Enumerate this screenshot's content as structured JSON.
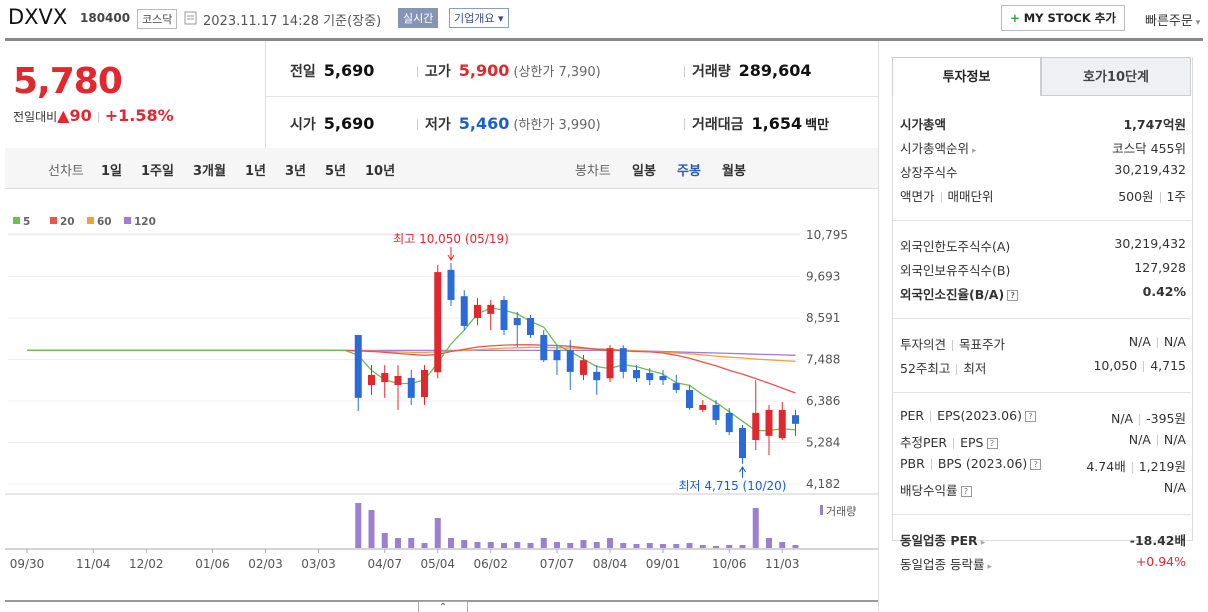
{
  "header": {
    "name": "DXVX",
    "code": "180400",
    "market": "코스닥",
    "datetime": "2023.11.17 14:28",
    "basis": "기준(장중)",
    "realtime": "실시간",
    "company": "기업개요",
    "mystock": "MY STOCK 추가",
    "quick_order": "빠른주문"
  },
  "quote": {
    "price": "5,780",
    "change_label": "전일대비",
    "change": "▲90",
    "change_rate": "+1.58%",
    "stats": [
      {
        "label": "전일",
        "value": "5,690"
      },
      {
        "label": "고가",
        "value": "5,900",
        "note": "(상한가 7,390)"
      },
      {
        "label": "거래량",
        "value": "289,604"
      },
      {
        "label": "시가",
        "value": "5,690"
      },
      {
        "label": "저가",
        "value": "5,460",
        "note": "(하한가 3,990)"
      },
      {
        "label": "거래대금",
        "value": "1,654",
        "unit": "백만"
      }
    ]
  },
  "periods": {
    "line_label": "선차트",
    "line": [
      "1일",
      "1주일",
      "3개월",
      "1년",
      "3년",
      "5년",
      "10년"
    ],
    "candle_label": "봉차트",
    "candle": [
      "일봉",
      "주봉",
      "월봉"
    ]
  },
  "chart_data": {
    "type": "candlestick",
    "categories": [
      "09/30",
      null,
      null,
      null,
      null,
      "11/04",
      null,
      null,
      null,
      "12/02",
      null,
      null,
      null,
      null,
      "01/06",
      null,
      null,
      null,
      "02/03",
      null,
      null,
      null,
      "03/03",
      null,
      null,
      null,
      null,
      "04/07",
      null,
      null,
      null,
      "05/04",
      null,
      null,
      null,
      "06/02",
      null,
      null,
      null,
      null,
      "07/07",
      null,
      null,
      null,
      "08/04",
      null,
      null,
      null,
      "09/01",
      null,
      null,
      null,
      null,
      "10/06",
      null,
      null,
      null,
      "11/03",
      null
    ],
    "open": [
      null,
      null,
      null,
      null,
      null,
      null,
      null,
      null,
      null,
      null,
      null,
      null,
      null,
      null,
      null,
      null,
      null,
      null,
      null,
      null,
      null,
      null,
      null,
      null,
      null,
      8140,
      6810,
      6890,
      6810,
      7000,
      6490,
      7150,
      9870,
      9170,
      8590,
      8700,
      9070,
      8590,
      8590,
      8140,
      7740,
      7740,
      7080,
      7160,
      6990,
      7790,
      7210,
      7130,
      7050,
      6860,
      6680,
      6150,
      6280,
      6070,
      5670,
      5350,
      5460,
      5400,
      6010
    ],
    "high": [
      null,
      null,
      null,
      null,
      null,
      null,
      null,
      null,
      null,
      null,
      null,
      null,
      null,
      null,
      null,
      null,
      null,
      null,
      null,
      null,
      null,
      null,
      null,
      null,
      null,
      8140,
      7340,
      7340,
      7340,
      7210,
      7340,
      10000,
      10050,
      9330,
      9120,
      9070,
      9170,
      8750,
      8670,
      8270,
      7870,
      8010,
      7610,
      7340,
      7870,
      7870,
      7340,
      7260,
      7210,
      7080,
      6810,
      6410,
      6410,
      6200,
      5750,
      6940,
      6280,
      6360,
      6150
    ],
    "low": [
      null,
      null,
      null,
      null,
      null,
      null,
      null,
      null,
      null,
      null,
      null,
      null,
      null,
      null,
      null,
      null,
      null,
      null,
      null,
      null,
      null,
      null,
      null,
      null,
      null,
      6120,
      6550,
      6470,
      6150,
      6280,
      6280,
      6990,
      8910,
      8270,
      8400,
      8270,
      8140,
      7820,
      8060,
      7420,
      7080,
      6680,
      6940,
      6550,
      6890,
      6990,
      6890,
      6810,
      6810,
      6600,
      6150,
      6090,
      5750,
      5480,
      4715,
      5080,
      4950,
      5350,
      5460
    ],
    "close": [
      null,
      null,
      null,
      null,
      null,
      null,
      null,
      null,
      null,
      null,
      null,
      null,
      null,
      null,
      null,
      null,
      null,
      null,
      null,
      null,
      null,
      null,
      null,
      null,
      null,
      6470,
      7080,
      7130,
      7050,
      6470,
      7210,
      9810,
      9070,
      8380,
      8940,
      8940,
      8270,
      8400,
      8140,
      7470,
      7470,
      7160,
      7470,
      6940,
      7790,
      7160,
      6990,
      6940,
      6940,
      6680,
      6200,
      6280,
      5880,
      5560,
      4870,
      6070,
      6150,
      6150,
      5780
    ],
    "up_color": "#e0282e",
    "down_color": "#2a6bd8",
    "series": [
      {
        "name": "5",
        "color": "#6bbf4e",
        "values": [
          7730,
          7730,
          7730,
          7730,
          7730,
          7730,
          7730,
          7730,
          7730,
          7730,
          7730,
          7730,
          7730,
          7730,
          7730,
          7730,
          7730,
          7730,
          7730,
          7730,
          7730,
          7730,
          7730,
          7730,
          7730,
          7600,
          7200,
          6950,
          6850,
          6850,
          6950,
          7400,
          7900,
          8270,
          8700,
          8860,
          8800,
          8700,
          8500,
          8350,
          7870,
          7700,
          7500,
          7300,
          7250,
          7350,
          7300,
          7200,
          7100,
          6870,
          6800,
          6550,
          6350,
          6100,
          5850,
          5600,
          5600,
          5650,
          5620
        ]
      },
      {
        "name": "20",
        "color": "#e8554e",
        "values": [
          7730,
          7730,
          7730,
          7730,
          7730,
          7730,
          7730,
          7730,
          7730,
          7730,
          7730,
          7730,
          7730,
          7730,
          7730,
          7730,
          7730,
          7730,
          7730,
          7730,
          7730,
          7730,
          7730,
          7730,
          7730,
          7720,
          7700,
          7680,
          7650,
          7620,
          7600,
          7620,
          7700,
          7760,
          7820,
          7850,
          7870,
          7880,
          7880,
          7870,
          7860,
          7840,
          7800,
          7760,
          7740,
          7720,
          7700,
          7690,
          7660,
          7600,
          7520,
          7420,
          7320,
          7200,
          7100,
          6980,
          6860,
          6730,
          6600
        ]
      },
      {
        "name": "60",
        "color": "#f2a03d",
        "values": [
          7730,
          7730,
          7730,
          7730,
          7730,
          7730,
          7730,
          7730,
          7730,
          7730,
          7730,
          7730,
          7730,
          7730,
          7730,
          7730,
          7730,
          7730,
          7730,
          7730,
          7730,
          7730,
          7730,
          7730,
          7730,
          7720,
          7710,
          7700,
          7690,
          7680,
          7680,
          7690,
          7710,
          7730,
          7750,
          7770,
          7790,
          7800,
          7810,
          7810,
          7800,
          7790,
          7780,
          7770,
          7760,
          7740,
          7720,
          7700,
          7680,
          7660,
          7640,
          7610,
          7580,
          7550,
          7530,
          7500,
          7480,
          7460,
          7440
        ]
      },
      {
        "name": "120",
        "color": "#a37bd6",
        "values": [
          7730,
          7730,
          7730,
          7730,
          7730,
          7730,
          7730,
          7730,
          7730,
          7730,
          7730,
          7730,
          7730,
          7730,
          7730,
          7730,
          7730,
          7730,
          7730,
          7730,
          7730,
          7730,
          7730,
          7730,
          7730,
          7730,
          7730,
          7730,
          7730,
          7730,
          7730,
          7730,
          7730,
          7730,
          7730,
          7730,
          7730,
          7730,
          7730,
          7730,
          7730,
          7730,
          7730,
          7730,
          7730,
          7730,
          7720,
          7710,
          7700,
          7690,
          7680,
          7670,
          7660,
          7650,
          7640,
          7630,
          7620,
          7610,
          7600
        ]
      }
    ],
    "volume": {
      "name": "거래량",
      "color": "#9b7fd1",
      "ylim": [
        0,
        5000000
      ],
      "values": [
        null,
        null,
        null,
        null,
        null,
        null,
        null,
        null,
        null,
        null,
        null,
        null,
        null,
        null,
        null,
        null,
        null,
        null,
        null,
        null,
        null,
        null,
        null,
        null,
        null,
        4500000,
        3800000,
        1500000,
        1000000,
        1000000,
        500000,
        3000000,
        1000000,
        800000,
        600000,
        600000,
        500000,
        600000,
        500000,
        1000000,
        600000,
        500000,
        800000,
        600000,
        1000000,
        500000,
        400000,
        500000,
        400000,
        400000,
        500000,
        300000,
        200000,
        300000,
        300000,
        4000000,
        1000000,
        600000,
        300000
      ]
    },
    "ylim": [
      4182,
      10795
    ],
    "yticks": [
      {
        "value": 10795,
        "label": "10,795"
      },
      {
        "value": 9693,
        "label": "9,693"
      },
      {
        "value": 8591,
        "label": "8,591"
      },
      {
        "value": 7488,
        "label": "7,488"
      },
      {
        "value": 6386,
        "label": "6,386"
      },
      {
        "value": 5284,
        "label": "5,284"
      },
      {
        "value": 4182,
        "label": "4,182"
      }
    ],
    "grid": true,
    "annotations": {
      "high": "최고 10,050 (05/19)",
      "low": "최저 4,715 (10/20)"
    }
  },
  "invest": {
    "tabs": [
      "투자정보",
      "호가10단계"
    ],
    "sections": [
      [
        {
          "label": [
            "시가총액"
          ],
          "value": [
            "1,747억원"
          ]
        },
        {
          "label": [
            "시가총액순위"
          ],
          "value": [
            "코스닥 455위"
          ]
        },
        {
          "label": [
            "상장주식수"
          ],
          "value": [
            "30,219,432"
          ]
        },
        {
          "label": [
            "액면가",
            "매매단위"
          ],
          "value": [
            "500원",
            "1주"
          ]
        }
      ],
      [
        {
          "label": [
            "외국인한도주식수(A)"
          ],
          "value": [
            "30,219,432"
          ]
        },
        {
          "label": [
            "외국인보유주식수(B)"
          ],
          "value": [
            "127,928"
          ]
        },
        {
          "label": [
            "외국인소진율(B/A)"
          ],
          "value": [
            "0.42%"
          ]
        }
      ],
      [
        {
          "label": [
            "투자의견",
            "목표주가"
          ],
          "value": [
            "N/A",
            "N/A"
          ]
        },
        {
          "label": [
            "52주최고",
            "최저"
          ],
          "value": [
            "10,050",
            "4,715"
          ]
        }
      ],
      [
        {
          "label": [
            "PER",
            "EPS(2023.06)"
          ],
          "value": [
            "N/A",
            "-395원"
          ]
        },
        {
          "label": [
            "추정PER",
            "EPS"
          ],
          "value": [
            "N/A",
            "N/A"
          ]
        },
        {
          "label": [
            "PBR",
            "BPS (2023.06)"
          ],
          "value": [
            "4.74배",
            "1,219원"
          ]
        },
        {
          "label": [
            "배당수익률"
          ],
          "value": [
            "N/A"
          ]
        }
      ],
      [
        {
          "label": [
            "동일업종 PER"
          ],
          "value": [
            "-18.42배"
          ]
        },
        {
          "label": [
            "동일업종 등락률"
          ],
          "value": [
            "+0.94%"
          ]
        }
      ]
    ]
  }
}
